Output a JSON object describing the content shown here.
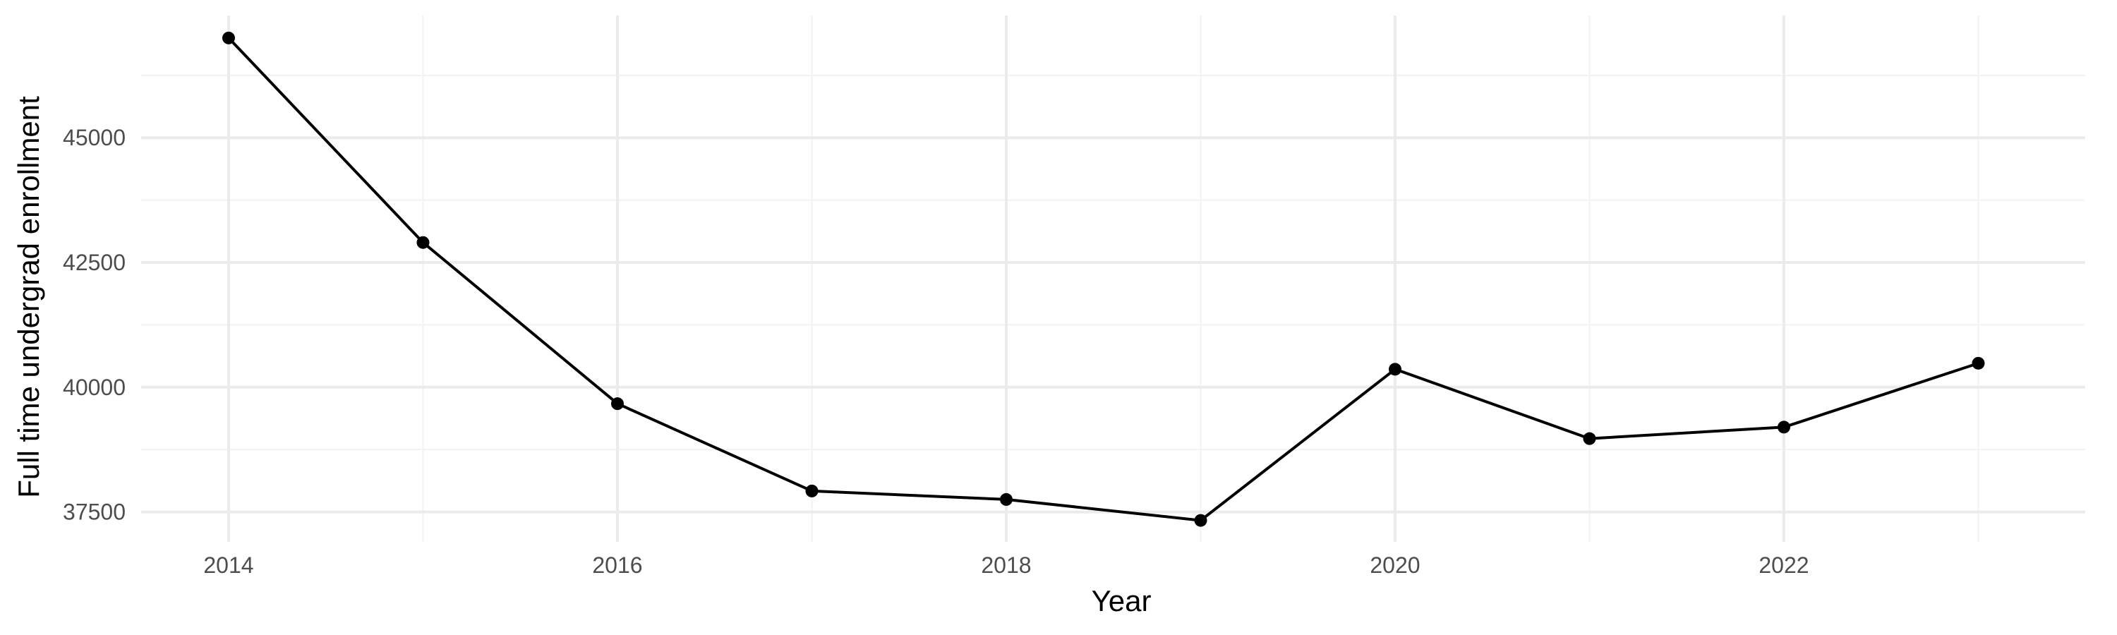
{
  "chart_data": {
    "type": "line",
    "xlabel": "Year",
    "ylabel": "Full time undergrad enrollment",
    "x": [
      2014,
      2015,
      2016,
      2017,
      2018,
      2019,
      2020,
      2021,
      2022,
      2023
    ],
    "series": [
      {
        "values": [
          47000,
          42900,
          39670,
          37920,
          37750,
          37330,
          40360,
          38970,
          39200,
          40480
        ]
      }
    ],
    "xticks": [
      "2014",
      "2016",
      "2018",
      "2020",
      "2022"
    ],
    "yticks": [
      "37500",
      "40000",
      "42500",
      "45000"
    ],
    "xlim": [
      2013.55,
      2023.55
    ],
    "ylim": [
      36900,
      47450
    ],
    "grid": true,
    "legend": "none",
    "colors": {
      "line": "#000000",
      "point": "#000000",
      "grid_major": "#ebebeb",
      "grid_minor": "#f3f3f3",
      "tick_text": "#4d4d4d"
    }
  }
}
